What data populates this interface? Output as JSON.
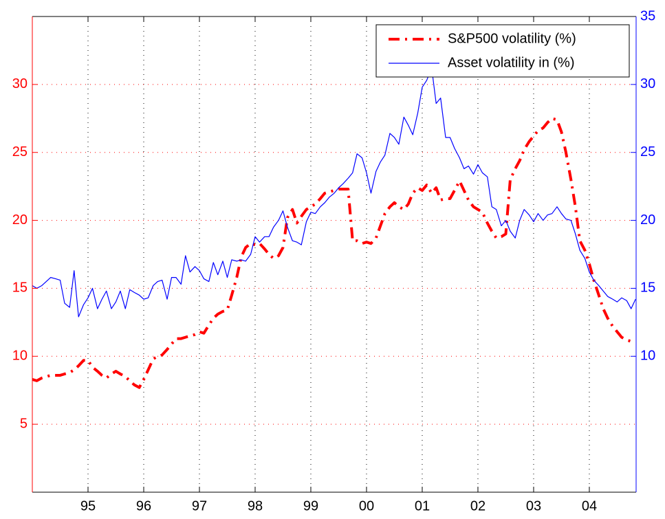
{
  "chart_data": {
    "type": "line",
    "x": [
      1994,
      1994.08,
      1994.17,
      1994.25,
      1994.33,
      1994.42,
      1994.5,
      1994.58,
      1994.67,
      1994.75,
      1994.83,
      1994.92,
      1995,
      1995.08,
      1995.17,
      1995.25,
      1995.33,
      1995.42,
      1995.5,
      1995.58,
      1995.67,
      1995.75,
      1995.83,
      1995.92,
      1996,
      1996.08,
      1996.17,
      1996.25,
      1996.33,
      1996.42,
      1996.5,
      1996.58,
      1996.67,
      1996.75,
      1996.83,
      1996.92,
      1997,
      1997.08,
      1997.17,
      1997.25,
      1997.33,
      1997.42,
      1997.5,
      1997.58,
      1997.67,
      1997.75,
      1997.83,
      1997.92,
      1998,
      1998.08,
      1998.17,
      1998.25,
      1998.33,
      1998.42,
      1998.5,
      1998.58,
      1998.67,
      1998.75,
      1998.83,
      1998.92,
      1999,
      1999.08,
      1999.17,
      1999.25,
      1999.33,
      1999.42,
      1999.5,
      1999.58,
      1999.67,
      1999.75,
      1999.83,
      1999.92,
      2000,
      2000.08,
      2000.17,
      2000.25,
      2000.33,
      2000.42,
      2000.5,
      2000.58,
      2000.67,
      2000.75,
      2000.83,
      2000.92,
      2001,
      2001.08,
      2001.17,
      2001.25,
      2001.33,
      2001.42,
      2001.5,
      2001.58,
      2001.67,
      2001.75,
      2001.83,
      2001.92,
      2002,
      2002.08,
      2002.17,
      2002.25,
      2002.33,
      2002.42,
      2002.5,
      2002.58,
      2002.67,
      2002.75,
      2002.83,
      2002.92,
      2003,
      2003.08,
      2003.17,
      2003.25,
      2003.33,
      2003.42,
      2003.5,
      2003.58,
      2003.67,
      2003.75,
      2003.83,
      2003.92,
      2004,
      2004.08,
      2004.17,
      2004.25,
      2004.33,
      2004.42,
      2004.5,
      2004.58,
      2004.67,
      2004.75,
      2004.83
    ],
    "series": [
      {
        "name": "S&P500 volatility (%)",
        "color": "#ff0000",
        "linestyle": "dashdot",
        "axis": "y",
        "values": [
          8.3,
          8.2,
          8.4,
          8.5,
          8.6,
          8.6,
          8.6,
          8.7,
          8.8,
          9.0,
          9.3,
          9.7,
          9.7,
          9.2,
          8.9,
          8.6,
          8.4,
          8.7,
          8.9,
          8.7,
          8.5,
          8.2,
          7.9,
          7.7,
          8.3,
          9.0,
          9.8,
          10.0,
          10.1,
          10.5,
          10.9,
          11.3,
          11.3,
          11.4,
          11.5,
          11.6,
          11.8,
          11.7,
          12.3,
          12.8,
          13.1,
          13.3,
          13.4,
          14.5,
          15.8,
          17.3,
          18.0,
          18.3,
          18.2,
          18.3,
          17.9,
          17.5,
          17.2,
          17.4,
          18.0,
          20.2,
          20.8,
          19.8,
          20.3,
          20.8,
          21.0,
          21.2,
          21.6,
          22.0,
          22.1,
          22.2,
          22.3,
          22.3,
          22.3,
          18.5,
          18.5,
          18.3,
          18.4,
          18.3,
          18.7,
          19.6,
          20.5,
          21.0,
          21.3,
          21.0,
          20.8,
          21.2,
          22.0,
          22.4,
          22.2,
          22.6,
          22.0,
          22.4,
          21.5,
          21.6,
          21.6,
          22.2,
          22.9,
          22.2,
          21.5,
          21.0,
          20.8,
          20.6,
          19.8,
          19.2,
          18.7,
          18.8,
          19.0,
          23.0,
          23.8,
          24.4,
          25.2,
          25.8,
          26.2,
          26.6,
          26.8,
          27.2,
          27.5,
          27.4,
          26.5,
          25.0,
          23.0,
          21.0,
          18.5,
          17.8,
          16.8,
          15.6,
          14.5,
          13.5,
          12.8,
          12.2,
          11.8,
          11.4,
          11.2,
          11.1,
          11.1
        ]
      },
      {
        "name": "Asset volatility in (%)",
        "color": "#0000ff",
        "linestyle": "solid",
        "axis": "y2",
        "values": [
          15.2,
          15.0,
          15.2,
          15.5,
          15.8,
          15.7,
          15.6,
          13.9,
          13.6,
          16.3,
          12.9,
          13.8,
          14.3,
          15.0,
          13.5,
          14.2,
          14.8,
          13.5,
          14.0,
          14.8,
          13.5,
          14.9,
          14.7,
          14.5,
          14.2,
          14.3,
          15.2,
          15.5,
          15.6,
          14.2,
          15.8,
          15.8,
          15.3,
          17.4,
          16.2,
          16.6,
          16.3,
          15.7,
          15.5,
          16.9,
          16.0,
          17.0,
          15.8,
          17.1,
          17.0,
          17.1,
          17.0,
          17.5,
          18.8,
          18.4,
          18.8,
          18.8,
          19.5,
          20.0,
          20.7,
          19.5,
          18.5,
          18.4,
          18.2,
          19.9,
          20.6,
          20.5,
          21.0,
          21.3,
          21.7,
          22.0,
          22.4,
          22.7,
          23.1,
          23.5,
          24.9,
          24.6,
          23.5,
          22.0,
          23.6,
          24.3,
          24.8,
          26.4,
          26.1,
          25.6,
          27.6,
          27.0,
          26.3,
          27.9,
          29.8,
          30.3,
          31.2,
          28.6,
          29.0,
          26.1,
          26.1,
          25.3,
          24.6,
          23.8,
          24.0,
          23.4,
          24.1,
          23.5,
          23.2,
          21.0,
          20.8,
          19.6,
          20.0,
          19.2,
          18.7,
          20.0,
          20.8,
          20.4,
          19.9,
          20.5,
          20.0,
          20.4,
          20.5,
          21.0,
          20.5,
          20.1,
          20.0,
          19.0,
          17.8,
          17.2,
          16.2,
          15.6,
          15.2,
          14.8,
          14.4,
          14.2,
          14.0,
          14.3,
          14.1,
          13.5,
          14.2
        ]
      }
    ],
    "xlim": [
      1994,
      2004.84
    ],
    "xticks": [
      {
        "value": 1995,
        "label": "95"
      },
      {
        "value": 1996,
        "label": "96"
      },
      {
        "value": 1997,
        "label": "97"
      },
      {
        "value": 1998,
        "label": "98"
      },
      {
        "value": 1999,
        "label": "99"
      },
      {
        "value": 2000,
        "label": "00"
      },
      {
        "value": 2001,
        "label": "01"
      },
      {
        "value": 2002,
        "label": "02"
      },
      {
        "value": 2003,
        "label": "03"
      },
      {
        "value": 2004,
        "label": "04"
      }
    ],
    "ylim": [
      0,
      35
    ],
    "yticks": [
      5,
      10,
      15,
      20,
      25,
      30
    ],
    "ycolor": "#ff0000",
    "y2lim": [
      0,
      35
    ],
    "y2ticks": [
      10,
      15,
      20,
      25,
      30,
      35
    ],
    "y2color": "#0000ff",
    "grid": true,
    "legend": "upper right"
  }
}
